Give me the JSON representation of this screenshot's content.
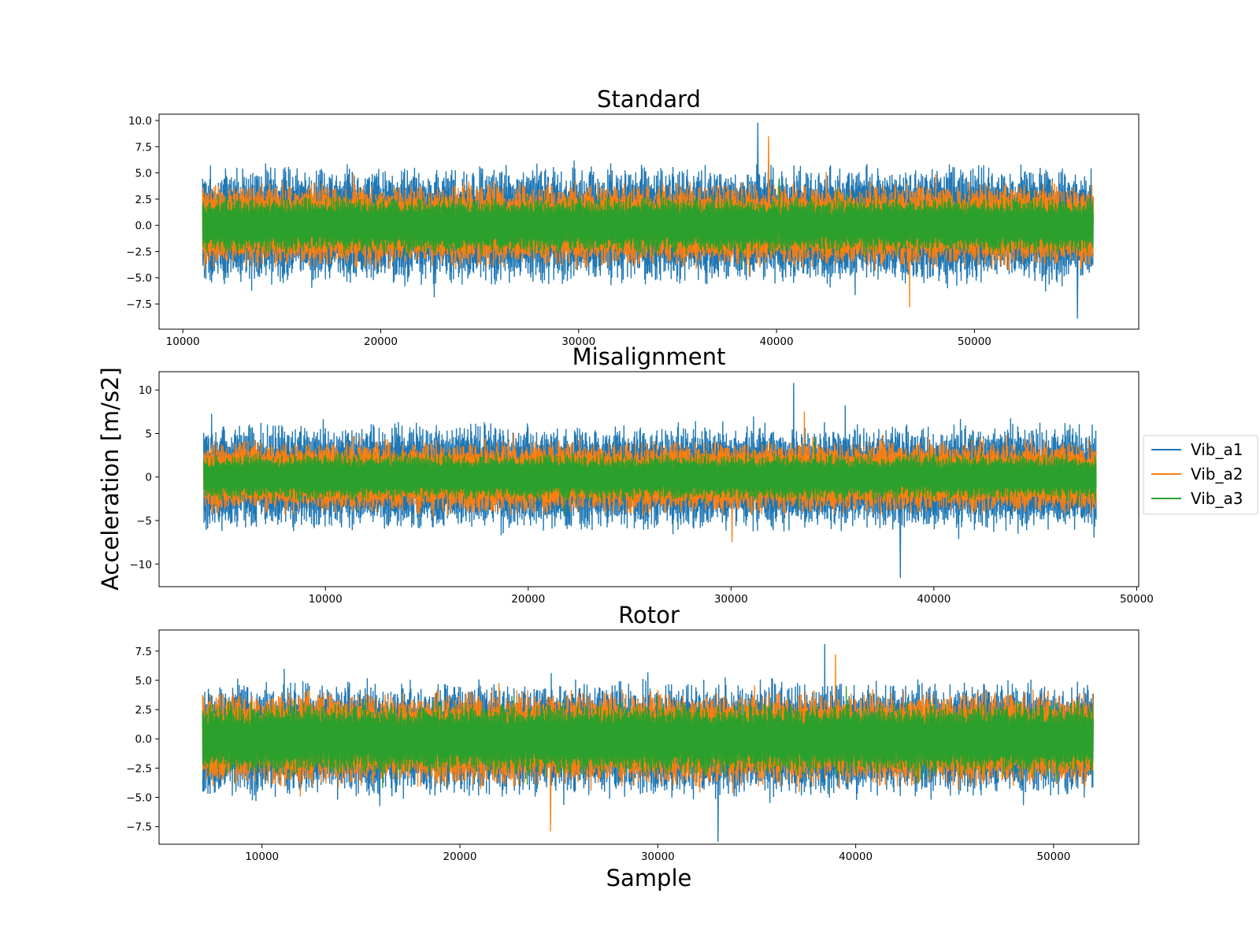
{
  "ylabel": "Acceleration [m/s2]",
  "xlabel": "Sample",
  "legend": {
    "placement": "center-right",
    "entries": [
      {
        "name": "Vib_a1",
        "color": "#1f77b4"
      },
      {
        "name": "Vib_a2",
        "color": "#ff7f0e"
      },
      {
        "name": "Vib_a3",
        "color": "#2ca02c"
      }
    ]
  },
  "chart_data": [
    {
      "type": "line",
      "title": "Standard",
      "xlabel": "",
      "ylabel": "",
      "xlim": [
        8800,
        58300
      ],
      "ylim": [
        -9.9,
        10.6
      ],
      "x_range": [
        11000,
        56000
      ],
      "xticks": [
        10000,
        20000,
        30000,
        40000,
        50000
      ],
      "xtick_labels": [
        "10000",
        "20000",
        "30000",
        "40000",
        "50000"
      ],
      "yticks": [
        -7.5,
        -5.0,
        -2.5,
        0.0,
        2.5,
        5.0,
        7.5,
        10.0
      ],
      "ytick_labels": [
        "−7.5",
        "−5.0",
        "−2.5",
        "0.0",
        "2.5",
        "5.0",
        "7.5",
        "10.0"
      ],
      "series": [
        {
          "name": "Vib_a1",
          "amplitude": 6.0,
          "peak_max": 9.8,
          "peak_min": -8.9
        },
        {
          "name": "Vib_a2",
          "amplitude": 4.3,
          "peak_max": 8.5,
          "peak_min": -7.8
        },
        {
          "name": "Vib_a3",
          "amplitude": 2.9,
          "peak_max": 4.5,
          "peak_min": -4.2
        }
      ]
    },
    {
      "type": "line",
      "title": "Misalignment",
      "xlabel": "",
      "ylabel": "",
      "xlim": [
        1800,
        50100
      ],
      "ylim": [
        -12.6,
        12.1
      ],
      "x_range": [
        4000,
        48000
      ],
      "xticks": [
        10000,
        20000,
        30000,
        40000,
        50000
      ],
      "xtick_labels": [
        "10000",
        "20000",
        "30000",
        "40000",
        "50000"
      ],
      "yticks": [
        -10,
        -5,
        0,
        5,
        10
      ],
      "ytick_labels": [
        "−10",
        "−5",
        "0",
        "5",
        "10"
      ],
      "series": [
        {
          "name": "Vib_a1",
          "amplitude": 6.5,
          "peak_max": 10.8,
          "peak_min": -11.6
        },
        {
          "name": "Vib_a2",
          "amplitude": 4.5,
          "peak_max": 7.5,
          "peak_min": -7.5
        },
        {
          "name": "Vib_a3",
          "amplitude": 2.9,
          "peak_max": 4.5,
          "peak_min": -4.5
        }
      ]
    },
    {
      "type": "line",
      "title": "Rotor",
      "xlabel": "Sample",
      "ylabel": "",
      "xlim": [
        4800,
        54300
      ],
      "ylim": [
        -9.0,
        9.3
      ],
      "x_range": [
        7000,
        52000
      ],
      "xticks": [
        10000,
        20000,
        30000,
        40000,
        50000
      ],
      "xtick_labels": [
        "10000",
        "20000",
        "30000",
        "40000",
        "50000"
      ],
      "yticks": [
        -7.5,
        -5.0,
        -2.5,
        0.0,
        2.5,
        5.0,
        7.5
      ],
      "ytick_labels": [
        "−7.5",
        "−5.0",
        "−2.5",
        "0.0",
        "2.5",
        "5.0",
        "7.5"
      ],
      "series": [
        {
          "name": "Vib_a1",
          "amplitude": 5.3,
          "peak_max": 8.1,
          "peak_min": -8.8
        },
        {
          "name": "Vib_a2",
          "amplitude": 4.3,
          "peak_max": 7.2,
          "peak_min": -7.9
        },
        {
          "name": "Vib_a3",
          "amplitude": 3.3,
          "peak_max": 4.5,
          "peak_min": -4.2
        }
      ]
    }
  ]
}
